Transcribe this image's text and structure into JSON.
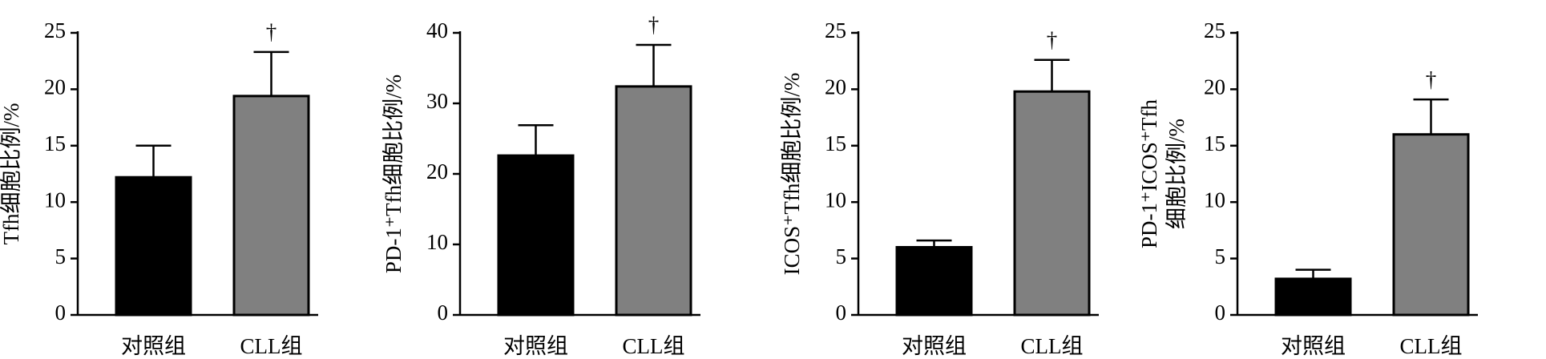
{
  "chart_data": [
    {
      "type": "bar",
      "ylabel": [
        "Tfh细胞比例/%"
      ],
      "categories": [
        "对照组",
        "CLL组"
      ],
      "values": [
        12.2,
        19.4
      ],
      "errors": [
        2.8,
        3.9
      ],
      "colors": [
        "#000000",
        "#808080"
      ],
      "value_annotations": [
        null,
        "†"
      ],
      "ylim": [
        0,
        25
      ],
      "yticks": [
        0,
        5,
        10,
        15,
        20,
        25
      ]
    },
    {
      "type": "bar",
      "ylabel": [
        "PD-1⁺Tfh细胞比例/%"
      ],
      "categories": [
        "对照组",
        "CLL组"
      ],
      "values": [
        22.6,
        32.4
      ],
      "errors": [
        4.3,
        5.9
      ],
      "colors": [
        "#000000",
        "#808080"
      ],
      "value_annotations": [
        null,
        "†"
      ],
      "ylim": [
        0,
        40
      ],
      "yticks": [
        0,
        10,
        20,
        30,
        40
      ]
    },
    {
      "type": "bar",
      "ylabel": [
        "ICOS⁺Tfh细胞比例/%"
      ],
      "categories": [
        "对照组",
        "CLL组"
      ],
      "values": [
        6.0,
        19.8
      ],
      "errors": [
        0.6,
        2.8
      ],
      "colors": [
        "#000000",
        "#808080"
      ],
      "value_annotations": [
        null,
        "†"
      ],
      "ylim": [
        0,
        25
      ],
      "yticks": [
        0,
        5,
        10,
        15,
        20,
        25
      ]
    },
    {
      "type": "bar",
      "ylabel": [
        "PD-1⁺ICOS⁺Tfh",
        "细胞比例/%"
      ],
      "categories": [
        "对照组",
        "CLL组"
      ],
      "values": [
        3.2,
        16.0
      ],
      "errors": [
        0.8,
        3.1
      ],
      "colors": [
        "#000000",
        "#808080"
      ],
      "value_annotations": [
        null,
        "†"
      ],
      "ylim": [
        0,
        25
      ],
      "yticks": [
        0,
        5,
        10,
        15,
        20,
        25
      ]
    }
  ]
}
